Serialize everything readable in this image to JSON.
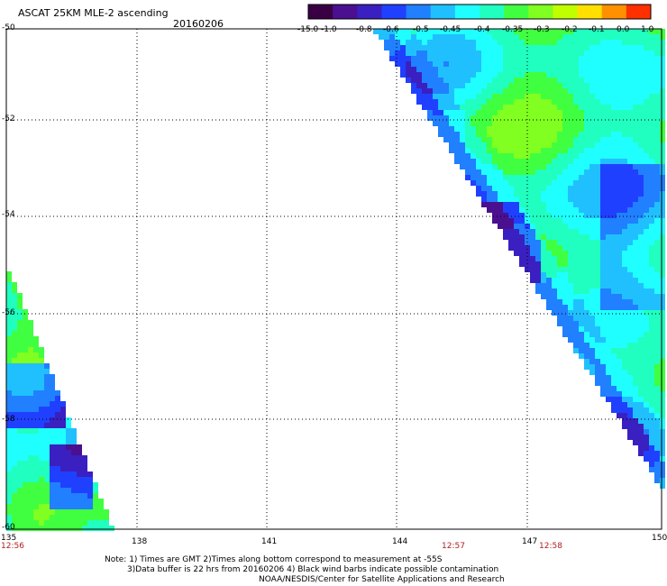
{
  "header": {
    "title": "ASCAT 25KM MLE-2 ascending",
    "date": "20160206"
  },
  "colorbar": {
    "labels": [
      "-15.0",
      "-1.0",
      "-0.8",
      "-0.6",
      "-0.5",
      "-0.45",
      "-0.4",
      "-0.35",
      "-0.3",
      "-0.2",
      "-0.1",
      "0.0",
      "1.0"
    ],
    "colors": [
      "#3a0044",
      "#4a1090",
      "#3a20c0",
      "#2040ff",
      "#2080ff",
      "#20c0ff",
      "#20ffff",
      "#20ffc0",
      "#40ff40",
      "#80ff20",
      "#c0ff00",
      "#ffe000",
      "#ff9000",
      "#ff3000"
    ]
  },
  "axes": {
    "y_labels": [
      "-50",
      "-52",
      "-54",
      "-56",
      "-58",
      "-60"
    ],
    "x_labels": [
      "135",
      "138",
      "141",
      "144",
      "147",
      "150"
    ]
  },
  "time_labels": [
    "12:56",
    "12:57",
    "12:58"
  ],
  "footer": {
    "line1": "Note: 1) Times are GMT 2)Times along bottom correspond to measurement at -55S",
    "line2": "3)Data buffer is 22 hrs from 20160206 4) Black wind barbs indicate possible contamination",
    "line3": "NOAA/NESDIS/Center for Satellite Applications and Research"
  }
}
